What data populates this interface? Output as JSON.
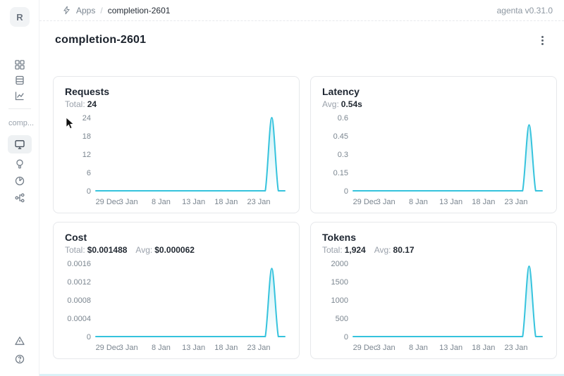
{
  "header": {
    "breadcrumb": {
      "section": "Apps",
      "separator": "/",
      "current": "completion-2601"
    },
    "version": "agenta v0.31.0"
  },
  "sidebar": {
    "avatar_initial": "R",
    "workspace_label": "comp...",
    "nav_top": [
      {
        "id": "apps",
        "icon": "grid-icon"
      },
      {
        "id": "testsets",
        "icon": "rows-icon"
      },
      {
        "id": "observability",
        "icon": "line-chart-icon"
      }
    ],
    "nav_app": [
      {
        "id": "overview",
        "icon": "monitor-icon",
        "active": true
      },
      {
        "id": "playground",
        "icon": "bulb-icon",
        "active": false
      },
      {
        "id": "evaluations",
        "icon": "gauge-icon",
        "active": false
      },
      {
        "id": "traces",
        "icon": "tree-icon",
        "active": false
      }
    ],
    "nav_bottom": [
      {
        "id": "alerts",
        "icon": "triangle-icon"
      },
      {
        "id": "help",
        "icon": "question-circle-icon"
      }
    ]
  },
  "page": {
    "title": "completion-2601"
  },
  "theme": {
    "accent": "#35c3dd",
    "accent_fill": "rgba(53,195,221,0.26)",
    "text_dark": "#1d2530",
    "text_gray": "#9aa1ab",
    "card_border": "#e6e8eb"
  },
  "chart_data": [
    {
      "type": "area",
      "title": "Requests",
      "stats": [
        {
          "label": "Total:",
          "value": "24"
        }
      ],
      "x_tick_labels": [
        "29 Dec",
        "3 Jan",
        "8 Jan",
        "13 Jan",
        "18 Jan",
        "23 Jan"
      ],
      "x_tick_days": [
        0,
        5,
        10,
        15,
        20,
        25
      ],
      "x_domain_days": 29,
      "y_tick_labels": [
        "0",
        "6",
        "12",
        "18",
        "24"
      ],
      "ymax": 24,
      "grid": false,
      "legend": "none",
      "series": [
        {
          "name": "requests",
          "values": [
            0,
            0,
            0,
            0,
            0,
            0,
            0,
            0,
            0,
            0,
            0,
            0,
            0,
            0,
            0,
            0,
            0,
            0,
            0,
            0,
            0,
            0,
            0,
            0,
            0,
            0,
            0,
            24,
            0,
            0
          ]
        }
      ]
    },
    {
      "type": "area",
      "title": "Latency",
      "stats": [
        {
          "label": "Avg:",
          "value": "0.54s"
        }
      ],
      "x_tick_labels": [
        "29 Dec",
        "3 Jan",
        "8 Jan",
        "13 Jan",
        "18 Jan",
        "23 Jan"
      ],
      "x_tick_days": [
        0,
        5,
        10,
        15,
        20,
        25
      ],
      "x_domain_days": 29,
      "y_tick_labels": [
        "0",
        "0.15",
        "0.3",
        "0.45",
        "0.6"
      ],
      "ymax": 0.6,
      "grid": false,
      "legend": "none",
      "series": [
        {
          "name": "latency",
          "values": [
            0,
            0,
            0,
            0,
            0,
            0,
            0,
            0,
            0,
            0,
            0,
            0,
            0,
            0,
            0,
            0,
            0,
            0,
            0,
            0,
            0,
            0,
            0,
            0,
            0,
            0,
            0,
            0.54,
            0,
            0
          ]
        }
      ]
    },
    {
      "type": "area",
      "title": "Cost",
      "stats": [
        {
          "label": "Total:",
          "value": "$0.001488"
        },
        {
          "label": "Avg:",
          "value": "$0.000062"
        }
      ],
      "x_tick_labels": [
        "29 Dec",
        "3 Jan",
        "8 Jan",
        "13 Jan",
        "18 Jan",
        "23 Jan"
      ],
      "x_tick_days": [
        0,
        5,
        10,
        15,
        20,
        25
      ],
      "x_domain_days": 29,
      "y_tick_labels": [
        "0",
        "0.0004",
        "0.0008",
        "0.0012",
        "0.0016"
      ],
      "ymax": 0.0016,
      "grid": false,
      "legend": "none",
      "series": [
        {
          "name": "cost",
          "values": [
            0,
            0,
            0,
            0,
            0,
            0,
            0,
            0,
            0,
            0,
            0,
            0,
            0,
            0,
            0,
            0,
            0,
            0,
            0,
            0,
            0,
            0,
            0,
            0,
            0,
            0,
            0,
            0.001488,
            0,
            0
          ]
        }
      ]
    },
    {
      "type": "area",
      "title": "Tokens",
      "stats": [
        {
          "label": "Total:",
          "value": "1,924"
        },
        {
          "label": "Avg:",
          "value": "80.17"
        }
      ],
      "x_tick_labels": [
        "29 Dec",
        "3 Jan",
        "8 Jan",
        "13 Jan",
        "18 Jan",
        "23 Jan"
      ],
      "x_tick_days": [
        0,
        5,
        10,
        15,
        20,
        25
      ],
      "x_domain_days": 29,
      "y_tick_labels": [
        "0",
        "500",
        "1000",
        "1500",
        "2000"
      ],
      "ymax": 2000,
      "grid": false,
      "legend": "none",
      "series": [
        {
          "name": "tokens",
          "values": [
            0,
            0,
            0,
            0,
            0,
            0,
            0,
            0,
            0,
            0,
            0,
            0,
            0,
            0,
            0,
            0,
            0,
            0,
            0,
            0,
            0,
            0,
            0,
            0,
            0,
            0,
            0,
            1924,
            0,
            0
          ]
        }
      ]
    }
  ]
}
